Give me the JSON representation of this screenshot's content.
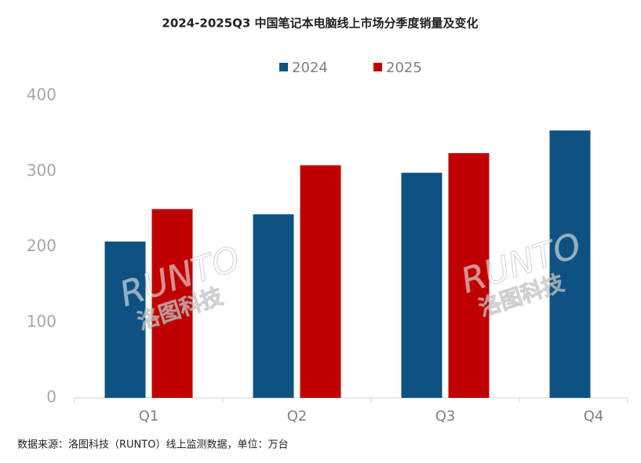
{
  "chart_data": {
    "type": "bar",
    "title": "2024-2025Q3 中国笔记本电脑线上市场分季度销量及变化",
    "categories": [
      "Q1",
      "Q2",
      "Q3",
      "Q4"
    ],
    "series": [
      {
        "name": "2024",
        "color": "#0d5282",
        "values": [
          207,
          243,
          298,
          354
        ]
      },
      {
        "name": "2025",
        "color": "#c00000",
        "values": [
          250,
          308,
          324,
          null
        ]
      }
    ],
    "ylim": [
      0,
      400
    ],
    "yticks": [
      0,
      100,
      200,
      300,
      400
    ],
    "grid": false,
    "legend": "top",
    "watermark": [
      "RUNTO",
      "洛图科技"
    ],
    "source": "数据来源：洛图科技（RUNTO）线上监测数据，单位：万台"
  }
}
